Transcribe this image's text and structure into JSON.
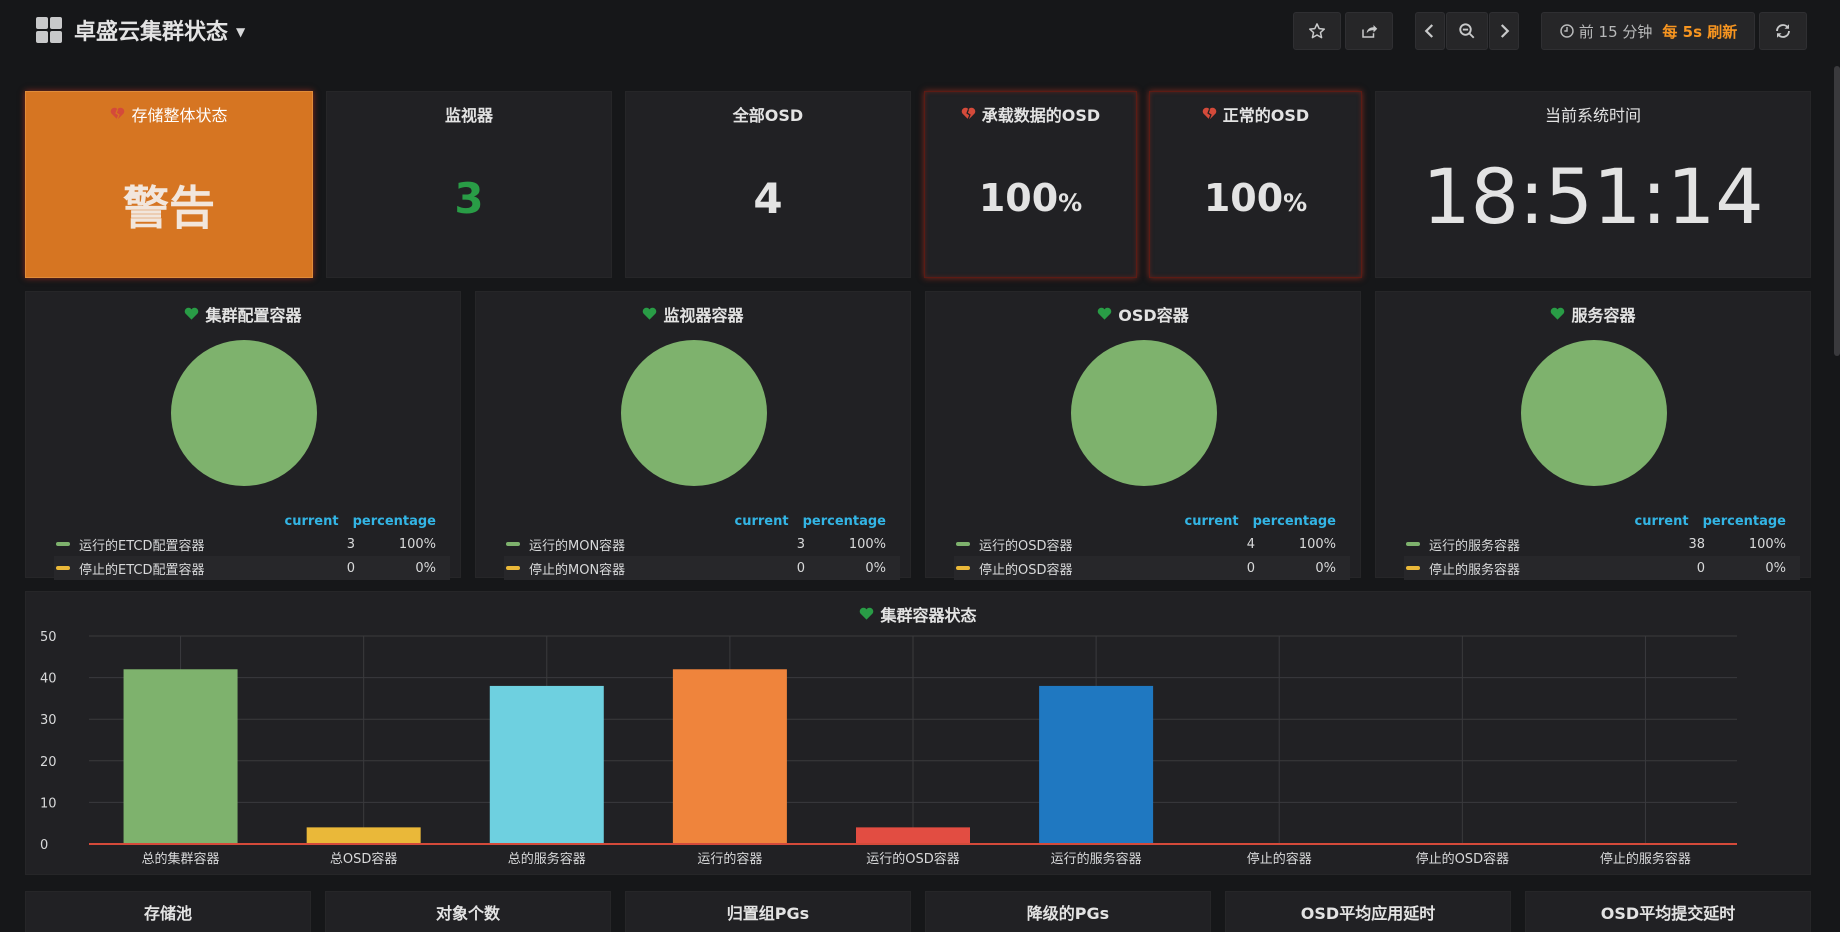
{
  "header": {
    "title": "卓盛云集群状态",
    "time_range": "前 15 分钟",
    "refresh": "每 5s 刷新"
  },
  "stats": {
    "storage_status": {
      "title": "存储整体状态",
      "value": "警告"
    },
    "monitors": {
      "title": "监视器",
      "value": "3"
    },
    "all_osd": {
      "title": "全部OSD",
      "value": "4"
    },
    "osd_with_data": {
      "title": "承载数据的OSD",
      "value": "100",
      "unit": "%"
    },
    "osd_normal": {
      "title": "正常的OSD",
      "value": "100",
      "unit": "%"
    },
    "system_time": {
      "title": "当前系统时间",
      "value": "18:51:14"
    }
  },
  "pies": [
    {
      "title": "集群配置容器",
      "col_current": "current",
      "col_percentage": "percentage",
      "rows": [
        {
          "name": "运行的ETCD配置容器",
          "current": "3",
          "percentage": "100%",
          "color": "#7eb26d"
        },
        {
          "name": "停止的ETCD配置容器",
          "current": "0",
          "percentage": "0%",
          "color": "#eab839"
        }
      ]
    },
    {
      "title": "监视器容器",
      "col_current": "current",
      "col_percentage": "percentage",
      "rows": [
        {
          "name": "运行的MON容器",
          "current": "3",
          "percentage": "100%",
          "color": "#7eb26d"
        },
        {
          "name": "停止的MON容器",
          "current": "0",
          "percentage": "0%",
          "color": "#eab839"
        }
      ]
    },
    {
      "title": "OSD容器",
      "col_current": "current",
      "col_percentage": "percentage",
      "rows": [
        {
          "name": "运行的OSD容器",
          "current": "4",
          "percentage": "100%",
          "color": "#7eb26d"
        },
        {
          "name": "停止的OSD容器",
          "current": "0",
          "percentage": "0%",
          "color": "#eab839"
        }
      ]
    },
    {
      "title": "服务容器",
      "col_current": "current",
      "col_percentage": "percentage",
      "rows": [
        {
          "name": "运行的服务容器",
          "current": "38",
          "percentage": "100%",
          "color": "#7eb26d"
        },
        {
          "name": "停止的服务容器",
          "current": "0",
          "percentage": "0%",
          "color": "#eab839"
        }
      ]
    }
  ],
  "bar_panel_title": "集群容器状态",
  "chart_data": {
    "type": "bar",
    "title": "集群容器状态",
    "categories": [
      "总的集群容器",
      "总OSD容器",
      "总的服务容器",
      "运行的容器",
      "运行的OSD容器",
      "运行的服务容器",
      "停止的容器",
      "停止的OSD容器",
      "停止的服务容器"
    ],
    "values": [
      42,
      4,
      38,
      42,
      4,
      38,
      0,
      0,
      0
    ],
    "colors": [
      "#7eb26d",
      "#eab839",
      "#6ed0e0",
      "#ef843c",
      "#e24d42",
      "#1f78c1",
      "#ba43a9",
      "#705da0",
      "#508642"
    ],
    "ylim": [
      0,
      50
    ],
    "yticks": [
      0,
      10,
      20,
      30,
      40,
      50
    ],
    "grid": true
  },
  "bottom_panels": [
    "存储池",
    "对象个数",
    "归置组PGs",
    "降级的PGs",
    "OSD平均应用延时",
    "OSD平均提交延时"
  ],
  "colors": {
    "ok": "#299c46",
    "warn_bg": "#d67522",
    "alert_red": "#d44a3a",
    "green_value": "#299c46"
  }
}
